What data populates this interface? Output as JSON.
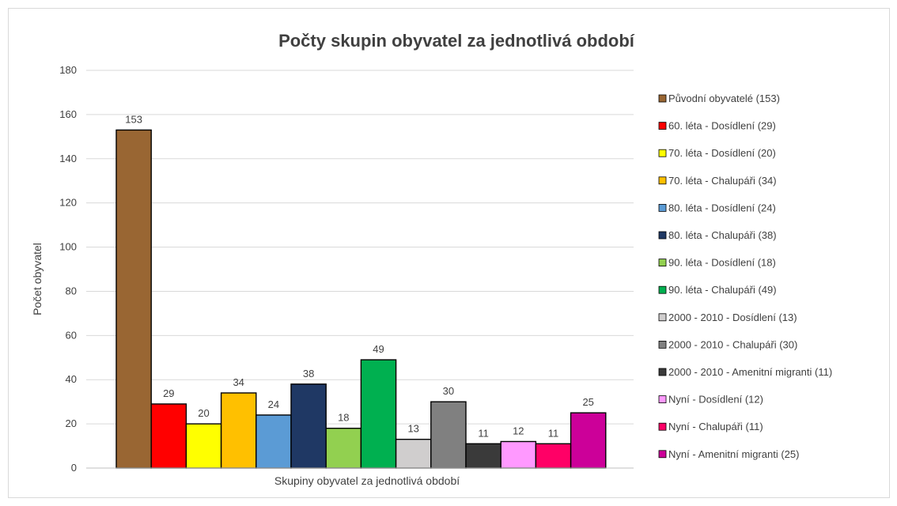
{
  "chart_data": {
    "type": "bar",
    "title": "Počty skupin obyvatel za jednotlivá období",
    "xlabel": "Skupiny obyvatel za jednotlivá období",
    "ylabel": "Počet obyvatel",
    "ylim": [
      0,
      180
    ],
    "yticks": [
      "0",
      "20",
      "40",
      "60",
      "80",
      "100",
      "120",
      "140",
      "160",
      "180"
    ],
    "grid": true,
    "legend_position": "right",
    "series": [
      {
        "name": "Původní obyvatelé (153)",
        "value": 153,
        "color": "#996633"
      },
      {
        "name": "60. léta - Dosídlení (29)",
        "value": 29,
        "color": "#ff0000"
      },
      {
        "name": "70. léta - Dosídlení (20)",
        "value": 20,
        "color": "#ffff00"
      },
      {
        "name": "70. léta - Chalupáři (34)",
        "value": 34,
        "color": "#ffc000"
      },
      {
        "name": "80. léta - Dosídlení (24)",
        "value": 24,
        "color": "#5b9bd5"
      },
      {
        "name": "80. léta - Chalupáři (38)",
        "value": 38,
        "color": "#1f3864"
      },
      {
        "name": "90. léta - Dosídlení (18)",
        "value": 18,
        "color": "#92d050"
      },
      {
        "name": "90. léta - Chalupáři (49)",
        "value": 49,
        "color": "#00b050"
      },
      {
        "name": "2000 - 2010 - Dosídlení (13)",
        "value": 13,
        "color": "#d0cece"
      },
      {
        "name": "2000 - 2010 - Chalupáři (30)",
        "value": 30,
        "color": "#808080"
      },
      {
        "name": "2000 - 2010 - Amenitní migranti (11)",
        "value": 11,
        "color": "#3a3a3a"
      },
      {
        "name": "Nyní - Dosídlení (12)",
        "value": 12,
        "color": "#ff99ff"
      },
      {
        "name": "Nyní - Chalupáři (11)",
        "value": 11,
        "color": "#ff0066"
      },
      {
        "name": "Nyní - Amenitní migranti (25)",
        "value": 25,
        "color": "#cc0099"
      }
    ]
  }
}
